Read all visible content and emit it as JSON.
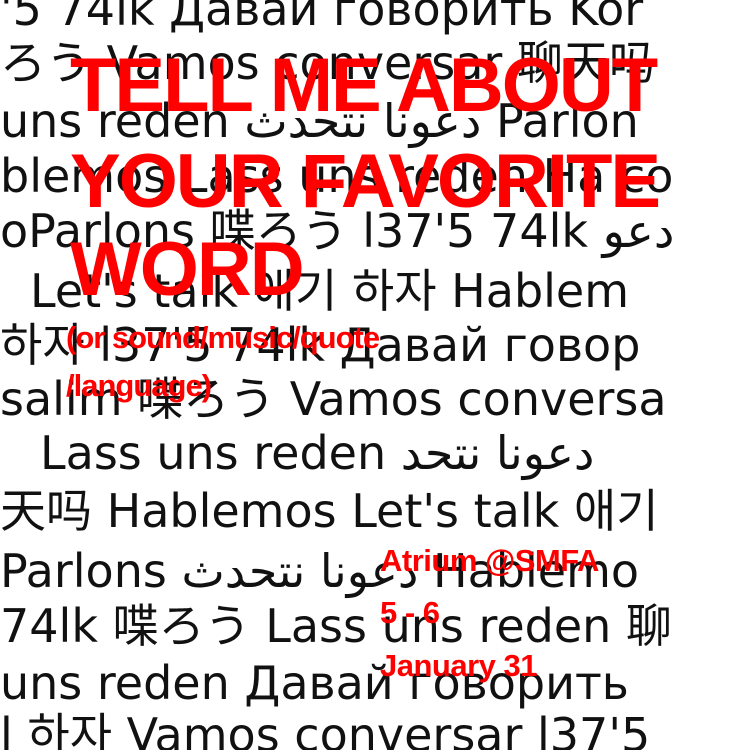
{
  "colors": {
    "background": "#ffffff",
    "background_text": "#111111",
    "accent": "#ff0000"
  },
  "background_lines": [
    "'5 74lk Давай говорить Kor",
    "ろう Vamos conversar 聊天吗",
    "uns reden دعونا نتحدث Parlon",
    "blemos Lass uns reden Ha co",
    "oParlons 喋ろう l37'5 74lk دعو",
    "Let's talk 애기 하자 Hablem",
    "하자 l37'5 74lk Давай говор",
    "salim 喋ろう Vamos conversa",
    "Lass uns reden دعونا نتحد",
    "天吗 Hablemos Let's talk 애기",
    "Parlons دعونا نتحدث Hablemo",
    "74lk 喋ろう Lass uns reden 聊",
    "uns reden Давай говорить",
    "l 하자 Vamos conversar l37'5"
  ],
  "headline_lines": [
    "TELL ME ABOUT",
    "YOUR FAVORITE",
    "WORD"
  ],
  "subtitle_lines": [
    "(or sound/music/quote",
    "/language)"
  ],
  "event": {
    "location": "Atrium @SMFA",
    "time": "5 - 6",
    "date": "January 31"
  }
}
